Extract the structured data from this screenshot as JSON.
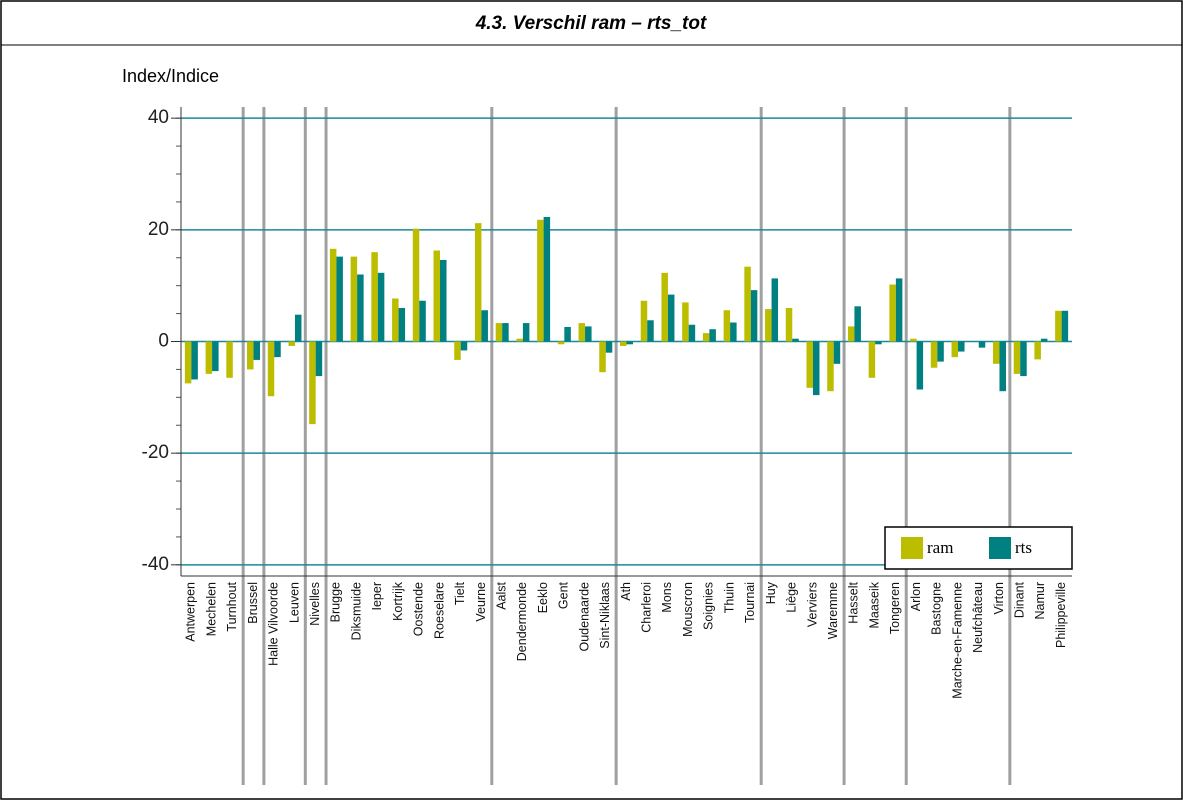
{
  "chart_data": {
    "type": "bar",
    "title": "4.3. Verschil ram – rts_tot",
    "y_label": "Index/Indice",
    "categories": [
      "Antwerpen",
      "Mechelen",
      "Turnhout",
      "Brussel",
      "Halle Vilvoorde",
      "Leuven",
      "Nivelles",
      "Brugge",
      "Diksmuide",
      "Ieper",
      "Kortrijk",
      "Oostende",
      "Roeselare",
      "Tielt",
      "Veurne",
      "Aalst",
      "Dendermonde",
      "Eeklo",
      "Gent",
      "Oudenaarde",
      "Sint-Niklaas",
      "Ath",
      "Charleroi",
      "Mons",
      "Mouscron",
      "Soignies",
      "Thuin",
      "Tournai",
      "Huy",
      "Liège",
      "Verviers",
      "Waremme",
      "Hasselt",
      "Maaseik",
      "Tongeren",
      "Arlon",
      "Bastogne",
      "Marche-en-Famenne",
      "Neufchâteau",
      "Virton",
      "Dinant",
      "Namur",
      "Philippeville"
    ],
    "series": [
      {
        "name": "ram",
        "color": "#bdbd00",
        "values": [
          -7.5,
          -5.8,
          -6.5,
          -5,
          -9.8,
          -0.8,
          -14.8,
          16.6,
          15.2,
          16,
          7.7,
          20.2,
          16.3,
          -3.3,
          21.2,
          3.3,
          0.5,
          21.8,
          -0.5,
          3.3,
          -5.5,
          -0.8,
          7.3,
          12.3,
          7,
          1.5,
          5.6,
          13.4,
          5.8,
          6,
          -8.3,
          -8.9,
          2.7,
          -6.5,
          10.2,
          0.5,
          -4.7,
          -2.8,
          0,
          -4,
          -5.8,
          -3.2,
          5.5
        ]
      },
      {
        "name": "rts",
        "color": "#008080",
        "values": [
          -6.8,
          -5.3,
          0,
          -3.3,
          -2.8,
          4.8,
          -6.2,
          15.2,
          12,
          12.3,
          6,
          7.3,
          14.6,
          -1.6,
          5.6,
          3.3,
          3.3,
          22.3,
          2.6,
          2.7,
          -2,
          -0.5,
          3.8,
          8.4,
          3,
          2.2,
          3.4,
          9.2,
          11.3,
          0.5,
          -9.6,
          -4,
          6.3,
          -0.5,
          11.3,
          -8.6,
          -3.6,
          -1.8,
          -1.1,
          -8.9,
          -6.2,
          0.5,
          5.5
        ]
      }
    ],
    "ylim": [
      -42,
      42
    ],
    "yticks": [
      -40,
      -20,
      0,
      20,
      40
    ],
    "grid": true,
    "legend": "lower right"
  }
}
